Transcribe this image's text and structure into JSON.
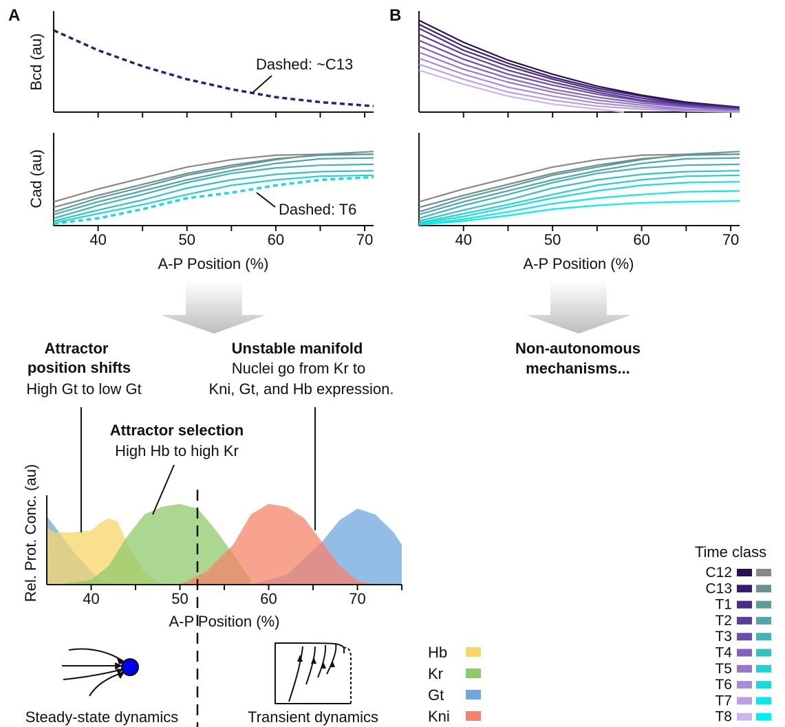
{
  "panels": {
    "A": {
      "label": "A",
      "bcd": {
        "ylabel": "Bcd (au)",
        "note": "Dashed: ~C13"
      },
      "cad": {
        "ylabel": "Cad (au)",
        "note": "Dashed: T6"
      },
      "xlabel": "A-P Position (%)"
    },
    "B": {
      "label": "B",
      "bcd": {
        "ylabel": ""
      },
      "cad": {
        "ylabel": ""
      },
      "xlabel": "A-P Position (%)"
    }
  },
  "annotations": {
    "shift_title": [
      "Attractor",
      "position shifts"
    ],
    "shift_text": "High Gt to low Gt",
    "manifold_title": "Unstable manifold",
    "manifold_text": [
      "Nuclei go from Kr to",
      "Kni, Gt, and Hb expression."
    ],
    "nonauto": [
      "Non-autonomous",
      "mechanisms..."
    ],
    "selection_title": "Attractor selection",
    "selection_text": "High Hb to high Kr",
    "steady": "Steady-state dynamics",
    "transient": "Transient dynamics"
  },
  "gap_legend": [
    {
      "name": "Hb",
      "color": "#f7d66a"
    },
    {
      "name": "Kr",
      "color": "#8fc96b"
    },
    {
      "name": "Gt",
      "color": "#6fa7dc"
    },
    {
      "name": "Kni",
      "color": "#f5836b"
    }
  ],
  "time_legend": {
    "title": "Time class",
    "classes": [
      {
        "name": "C12",
        "bcd": "#2a0f4f",
        "cad": "#888888"
      },
      {
        "name": "C13",
        "bcd": "#3a1a6e",
        "cad": "#6f8f8f"
      },
      {
        "name": "T1",
        "bcd": "#4a2b85",
        "cad": "#5f9a9a"
      },
      {
        "name": "T2",
        "bcd": "#5e3f98",
        "cad": "#4fa6a6"
      },
      {
        "name": "T3",
        "bcd": "#6e4fa8",
        "cad": "#40b4b4"
      },
      {
        "name": "T4",
        "bcd": "#8363b9",
        "cad": "#33c2c2"
      },
      {
        "name": "T5",
        "bcd": "#9678c8",
        "cad": "#26d0d0"
      },
      {
        "name": "T6",
        "bcd": "#a98ad6",
        "cad": "#18dcdc"
      },
      {
        "name": "T7",
        "bcd": "#bb9fe2",
        "cad": "#0ce8e8"
      },
      {
        "name": "T8",
        "bcd": "#cdb5ee",
        "cad": "#00f0f0"
      }
    ]
  },
  "chart_data": [
    {
      "id": "A-bcd",
      "type": "line",
      "ylabel": "Bcd (au)",
      "xlim": [
        35,
        71
      ],
      "series": [
        {
          "name": "C13",
          "style": "dashed",
          "x": [
            35,
            40,
            45,
            50,
            55,
            60,
            65,
            71
          ],
          "y": [
            0.82,
            0.62,
            0.46,
            0.33,
            0.23,
            0.15,
            0.1,
            0.06
          ]
        }
      ]
    },
    {
      "id": "B-bcd",
      "type": "line",
      "ylabel": "",
      "xlim": [
        35,
        71
      ],
      "series": [
        {
          "name": "C12",
          "x": [
            35,
            40,
            45,
            50,
            55,
            60,
            65,
            71
          ],
          "y": [
            0.92,
            0.7,
            0.52,
            0.38,
            0.26,
            0.17,
            0.1,
            0.05
          ]
        },
        {
          "name": "C13",
          "x": [
            35,
            40,
            45,
            50,
            55,
            60,
            65,
            71
          ],
          "y": [
            0.88,
            0.66,
            0.49,
            0.35,
            0.24,
            0.16,
            0.09,
            0.05
          ]
        },
        {
          "name": "T1",
          "x": [
            35,
            40,
            45,
            50,
            55,
            60,
            65,
            71
          ],
          "y": [
            0.84,
            0.62,
            0.46,
            0.33,
            0.22,
            0.14,
            0.08,
            0.04
          ]
        },
        {
          "name": "T2",
          "x": [
            35,
            40,
            45,
            50,
            55,
            60,
            65,
            71
          ],
          "y": [
            0.78,
            0.58,
            0.42,
            0.3,
            0.2,
            0.12,
            0.07,
            0.03
          ]
        },
        {
          "name": "T3",
          "x": [
            35,
            40,
            45,
            50,
            55,
            60,
            65,
            71
          ],
          "y": [
            0.72,
            0.53,
            0.38,
            0.27,
            0.18,
            0.11,
            0.06,
            0.03
          ]
        },
        {
          "name": "T4",
          "x": [
            35,
            40,
            45,
            50,
            55,
            60,
            65,
            71
          ],
          "y": [
            0.66,
            0.48,
            0.34,
            0.23,
            0.15,
            0.09,
            0.05,
            0.02
          ]
        },
        {
          "name": "T5",
          "x": [
            35,
            40,
            45,
            50,
            55,
            60,
            65,
            71
          ],
          "y": [
            0.6,
            0.43,
            0.3,
            0.2,
            0.12,
            0.07,
            0.03,
            0.01
          ]
        },
        {
          "name": "T6",
          "x": [
            35,
            40,
            45,
            50,
            55,
            60,
            65,
            71
          ],
          "y": [
            0.54,
            0.38,
            0.25,
            0.16,
            0.09,
            0.05,
            0.02,
            0.01
          ]
        },
        {
          "name": "T7",
          "x": [
            35,
            40,
            45,
            50,
            55,
            60,
            65,
            71
          ],
          "y": [
            0.48,
            0.33,
            0.2,
            0.12,
            0.06,
            0.03,
            0.01,
            0
          ]
        },
        {
          "name": "T8",
          "x": [
            35,
            40,
            45,
            50,
            55,
            58
          ],
          "y": [
            0.42,
            0.28,
            0.16,
            0.08,
            0.03,
            0
          ]
        }
      ]
    },
    {
      "id": "A-cad",
      "type": "line",
      "ylabel": "Cad (au)",
      "xlim": [
        35,
        71
      ],
      "series": [
        {
          "name": "C12",
          "x": [
            35,
            40,
            45,
            50,
            55,
            60,
            65,
            71
          ],
          "y": [
            0.26,
            0.4,
            0.52,
            0.64,
            0.72,
            0.77,
            0.78,
            0.78
          ]
        },
        {
          "name": "C13",
          "x": [
            35,
            40,
            45,
            50,
            55,
            60,
            65,
            71
          ],
          "y": [
            0.2,
            0.33,
            0.45,
            0.57,
            0.66,
            0.73,
            0.77,
            0.78
          ]
        },
        {
          "name": "T1",
          "x": [
            35,
            40,
            45,
            50,
            55,
            60,
            65,
            71
          ],
          "y": [
            0.15,
            0.3,
            0.42,
            0.55,
            0.64,
            0.72,
            0.78,
            0.81
          ]
        },
        {
          "name": "T2",
          "x": [
            35,
            40,
            45,
            50,
            55,
            60,
            65,
            71
          ],
          "y": [
            0.12,
            0.26,
            0.38,
            0.5,
            0.6,
            0.68,
            0.73,
            0.74
          ]
        },
        {
          "name": "T3",
          "x": [
            35,
            40,
            45,
            50,
            55,
            60,
            65,
            71
          ],
          "y": [
            0.08,
            0.22,
            0.34,
            0.47,
            0.57,
            0.63,
            0.66,
            0.67
          ]
        },
        {
          "name": "T4",
          "x": [
            35,
            40,
            45,
            50,
            55,
            60,
            65,
            71
          ],
          "y": [
            0.05,
            0.17,
            0.28,
            0.41,
            0.5,
            0.56,
            0.59,
            0.6
          ]
        },
        {
          "name": "T5",
          "x": [
            35,
            40,
            45,
            50,
            55,
            60,
            65,
            71
          ],
          "y": [
            0.03,
            0.13,
            0.23,
            0.34,
            0.44,
            0.5,
            0.54,
            0.55
          ]
        },
        {
          "name": "T6",
          "style": "dashed",
          "x": [
            35,
            40,
            45,
            50,
            55,
            60,
            65,
            71
          ],
          "y": [
            0.02,
            0.08,
            0.18,
            0.3,
            0.36,
            0.44,
            0.5,
            0.53
          ]
        }
      ]
    },
    {
      "id": "B-cad",
      "type": "line",
      "ylabel": "",
      "xlim": [
        35,
        71
      ],
      "series": [
        {
          "name": "C12",
          "x": [
            35,
            40,
            45,
            50,
            55,
            60,
            65,
            71
          ],
          "y": [
            0.26,
            0.4,
            0.52,
            0.64,
            0.72,
            0.77,
            0.78,
            0.78
          ]
        },
        {
          "name": "C13",
          "x": [
            35,
            40,
            45,
            50,
            55,
            60,
            65,
            71
          ],
          "y": [
            0.2,
            0.33,
            0.45,
            0.57,
            0.66,
            0.73,
            0.77,
            0.78
          ]
        },
        {
          "name": "T1",
          "x": [
            35,
            40,
            45,
            50,
            55,
            60,
            65,
            71
          ],
          "y": [
            0.15,
            0.3,
            0.42,
            0.55,
            0.64,
            0.72,
            0.78,
            0.81
          ]
        },
        {
          "name": "T2",
          "x": [
            35,
            40,
            45,
            50,
            55,
            60,
            65,
            71
          ],
          "y": [
            0.12,
            0.26,
            0.38,
            0.5,
            0.6,
            0.68,
            0.73,
            0.74
          ]
        },
        {
          "name": "T3",
          "x": [
            35,
            40,
            45,
            50,
            55,
            60,
            65,
            71
          ],
          "y": [
            0.08,
            0.22,
            0.34,
            0.47,
            0.57,
            0.63,
            0.66,
            0.67
          ]
        },
        {
          "name": "T4",
          "x": [
            35,
            40,
            45,
            50,
            55,
            60,
            65,
            71
          ],
          "y": [
            0.05,
            0.17,
            0.28,
            0.41,
            0.5,
            0.56,
            0.59,
            0.6
          ]
        },
        {
          "name": "T5",
          "x": [
            35,
            40,
            45,
            50,
            55,
            60,
            65,
            71
          ],
          "y": [
            0.03,
            0.13,
            0.23,
            0.34,
            0.44,
            0.5,
            0.54,
            0.55
          ]
        },
        {
          "name": "T6",
          "x": [
            35,
            40,
            45,
            50,
            55,
            60,
            65,
            71
          ],
          "y": [
            0.02,
            0.1,
            0.2,
            0.3,
            0.38,
            0.44,
            0.47,
            0.48
          ]
        },
        {
          "name": "T7",
          "x": [
            35,
            40,
            45,
            50,
            55,
            60,
            65,
            71
          ],
          "y": [
            0.01,
            0.07,
            0.15,
            0.24,
            0.3,
            0.34,
            0.37,
            0.38
          ]
        },
        {
          "name": "T8",
          "x": [
            35,
            40,
            45,
            50,
            55,
            60,
            65,
            71
          ],
          "y": [
            0.01,
            0.05,
            0.11,
            0.18,
            0.22,
            0.25,
            0.26,
            0.27
          ]
        }
      ]
    },
    {
      "id": "C-gap",
      "type": "area",
      "xlabel": "A-P Position (%)",
      "ylabel": "Rel. Prot. Conc. (au)",
      "xlim": [
        35,
        75
      ],
      "boundary_x": 51.5,
      "series": [
        {
          "name": "Hb",
          "x": [
            35,
            36,
            38,
            40,
            41,
            42,
            43,
            44,
            46,
            48
          ],
          "y": [
            0.6,
            0.55,
            0.55,
            0.57,
            0.65,
            0.7,
            0.66,
            0.45,
            0.12,
            0
          ]
        },
        {
          "name": "Kr",
          "x": [
            36,
            40,
            42,
            44,
            46,
            48,
            50,
            52,
            54,
            56,
            58
          ],
          "y": [
            0,
            0.05,
            0.2,
            0.5,
            0.74,
            0.82,
            0.85,
            0.8,
            0.58,
            0.32,
            0.05
          ]
        },
        {
          "name": "Gt",
          "x": [
            35,
            36,
            38,
            40,
            41,
            43,
            58,
            62,
            66,
            68,
            70,
            72,
            74,
            75
          ],
          "y": [
            0.72,
            0.6,
            0.35,
            0.14,
            0.05,
            0,
            0,
            0.1,
            0.45,
            0.68,
            0.8,
            0.74,
            0.56,
            0.42
          ]
        },
        {
          "name": "Kni",
          "x": [
            50,
            53,
            56,
            58,
            60,
            62,
            64,
            66,
            68,
            70,
            72
          ],
          "y": [
            0,
            0.14,
            0.42,
            0.74,
            0.85,
            0.82,
            0.7,
            0.45,
            0.2,
            0.04,
            0
          ]
        }
      ]
    }
  ]
}
